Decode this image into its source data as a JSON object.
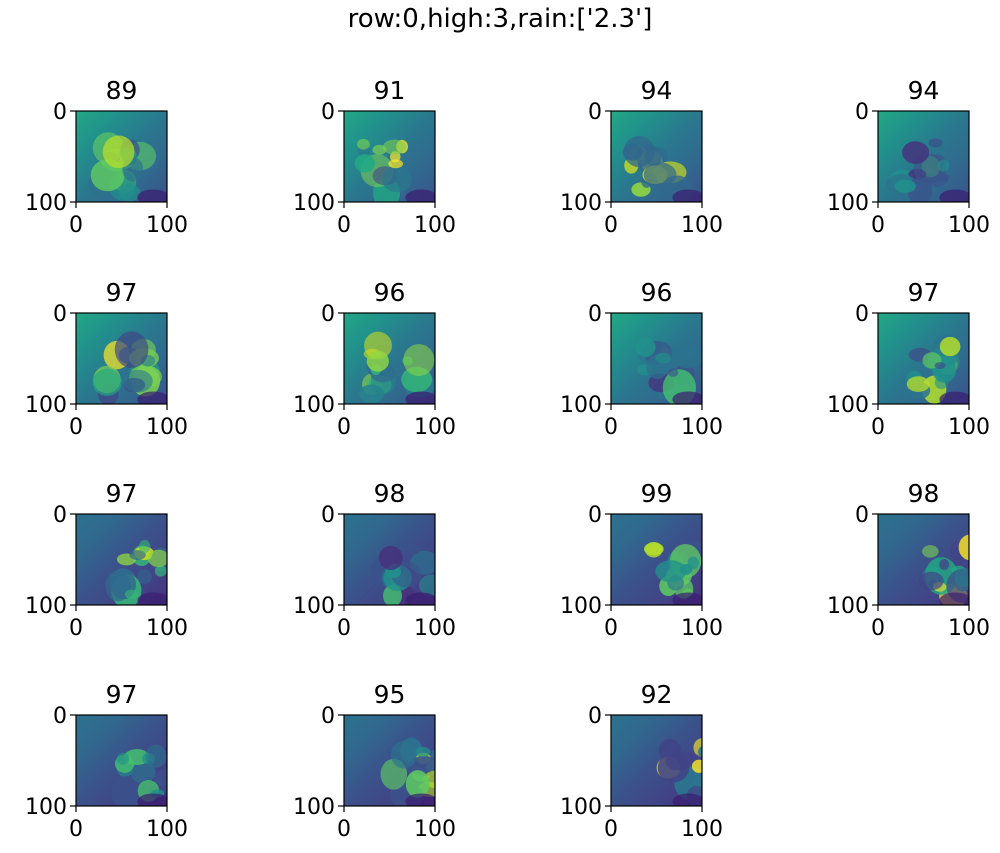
{
  "suptitle": "row:0,high:3,rain:['2.3']",
  "chart_data": {
    "type": "heatmap",
    "colormap": "viridis",
    "n_panels": 15,
    "layout": {
      "rows": 4,
      "cols": 4
    },
    "panel_titles": [
      "89",
      "91",
      "94",
      "94",
      "97",
      "96",
      "96",
      "97",
      "97",
      "98",
      "99",
      "98",
      "97",
      "95",
      "92"
    ],
    "x_ticks": [
      "0",
      "100"
    ],
    "y_ticks": [
      "0",
      "100"
    ],
    "xlim": [
      0,
      100
    ],
    "ylim": [
      100,
      0
    ]
  }
}
